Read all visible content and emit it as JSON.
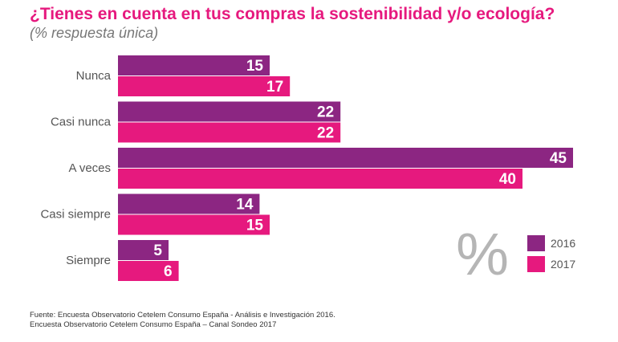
{
  "title": "¿Tienes en cuenta en tus compras la sostenibilidad y/o ecología?",
  "subtitle": "(% respuesta única)",
  "percent_symbol": "%",
  "colors": {
    "series_2016": "#8c2682",
    "series_2017": "#e6197e",
    "percent_symbol": "#b5b5b5",
    "category_label": "#555555"
  },
  "chart_data": {
    "type": "bar",
    "orientation": "horizontal",
    "categories": [
      "Nunca",
      "Casi nunca",
      "A veces",
      "Casi siempre",
      "Siempre"
    ],
    "series": [
      {
        "name": "2016",
        "values": [
          15,
          22,
          45,
          14,
          5
        ]
      },
      {
        "name": "2017",
        "values": [
          17,
          22,
          40,
          15,
          6
        ]
      }
    ],
    "legend_position": "bottom-right",
    "xlim": [
      0,
      45
    ],
    "grid": false,
    "data_labels": true
  },
  "source": {
    "line1": "Fuente: Encuesta Observatorio Cetelem Consumo España - Análisis e Investigación 2016.",
    "line2": "Encuesta Observatorio Cetelem Consumo España – Canal Sondeo 2017"
  }
}
